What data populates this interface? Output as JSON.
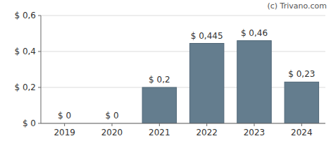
{
  "chart_data": {
    "type": "bar",
    "categories": [
      "2019",
      "2020",
      "2021",
      "2022",
      "2023",
      "2024"
    ],
    "values": [
      0,
      0,
      0.2,
      0.445,
      0.46,
      0.23
    ],
    "value_labels": [
      "$ 0",
      "$ 0",
      "$ 0,2",
      "$ 0,445",
      "$ 0,46",
      "$ 0,23"
    ],
    "data_labels": true,
    "color": "#647d8e",
    "ylim": [
      0,
      0.6
    ],
    "yticks": [
      {
        "value": 0,
        "label": "$ 0"
      },
      {
        "value": 0.2,
        "label": "$ 0,2"
      },
      {
        "value": 0.4,
        "label": "$ 0,4"
      },
      {
        "value": 0.6,
        "label": "$ 0,6"
      }
    ],
    "grid": true,
    "annotations": [
      "(c) Trivano.com"
    ]
  }
}
